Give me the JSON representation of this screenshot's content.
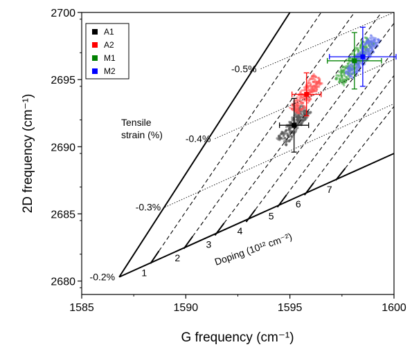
{
  "chart_data": {
    "type": "scatter",
    "xlabel": "G frequency (cm⁻¹)",
    "ylabel": "2D frequency (cm⁻¹)",
    "xlim": [
      1585,
      1600
    ],
    "ylim": [
      2679,
      2700
    ],
    "xticks": [
      1585,
      1590,
      1595,
      1600
    ],
    "yticks": [
      2680,
      2685,
      2690,
      2695,
      2700
    ],
    "grid": false,
    "legend_position": "top-left",
    "lines": {
      "tensile_axis": [
        [
          1586.8,
          2680.3
        ],
        [
          1595.0,
          2700.0
        ]
      ],
      "doping_axis": [
        [
          1586.8,
          2680.3
        ],
        [
          1600.0,
          2689.5
        ]
      ],
      "strain_isolines": [
        {
          "label": "-0.2%",
          "points": [
            [
              1586.8,
              2680.3
            ],
            [
              1600,
              2689.5
            ]
          ]
        },
        {
          "label": "-0.3%",
          "points": [
            [
              1589.0,
              2685.5
            ],
            [
              1600,
              2693.2
            ]
          ]
        },
        {
          "label": "-0.4%",
          "points": [
            [
              1591.4,
              2690.6
            ],
            [
              1600,
              2696.5
            ]
          ]
        },
        {
          "label": "-0.5%",
          "points": [
            [
              1593.6,
              2695.8
            ],
            [
              1600,
              2700.0
            ]
          ]
        }
      ],
      "doping_isolines": [
        {
          "label": "1",
          "points": [
            [
              1588.3,
              2681.3
            ],
            [
              1596.5,
              2700.0
            ]
          ]
        },
        {
          "label": "2",
          "points": [
            [
              1589.9,
              2682.4
            ],
            [
              1598.1,
              2700.0
            ]
          ]
        },
        {
          "label": "3",
          "points": [
            [
              1591.4,
              2683.4
            ],
            [
              1599.4,
              2700.0
            ]
          ]
        },
        {
          "label": "4",
          "points": [
            [
              1592.9,
              2684.4
            ],
            [
              1600.0,
              2699.2
            ]
          ]
        },
        {
          "label": "5",
          "points": [
            [
              1594.4,
              2685.5
            ],
            [
              1600.0,
              2697.2
            ]
          ]
        },
        {
          "label": "6",
          "points": [
            [
              1595.7,
              2686.4
            ],
            [
              1600.0,
              2695.3
            ]
          ]
        },
        {
          "label": "7",
          "points": [
            [
              1597.2,
              2687.5
            ],
            [
              1600.0,
              2693.0
            ]
          ]
        }
      ]
    },
    "annotations": {
      "tensile_label_line1": "Tensile",
      "tensile_label_line2": "strain (%)",
      "doping_label": "Doping (10¹² cm⁻²)"
    },
    "series": [
      {
        "name": "A1",
        "color": "#000000",
        "mean": [
          1595.2,
          2691.6
        ],
        "xerr": 0.7,
        "yerr": 2.0
      },
      {
        "name": "A2",
        "color": "#ff0000",
        "mean": [
          1595.8,
          2693.9
        ],
        "xerr": 0.7,
        "yerr": 1.6
      },
      {
        "name": "M1",
        "color": "#008000",
        "mean": [
          1598.1,
          2696.4
        ],
        "xerr": 1.3,
        "yerr": 2.1
      },
      {
        "name": "M2",
        "color": "#0000ff",
        "mean": [
          1598.5,
          2696.7
        ],
        "xerr": 1.6,
        "yerr": 2.2
      }
    ]
  }
}
